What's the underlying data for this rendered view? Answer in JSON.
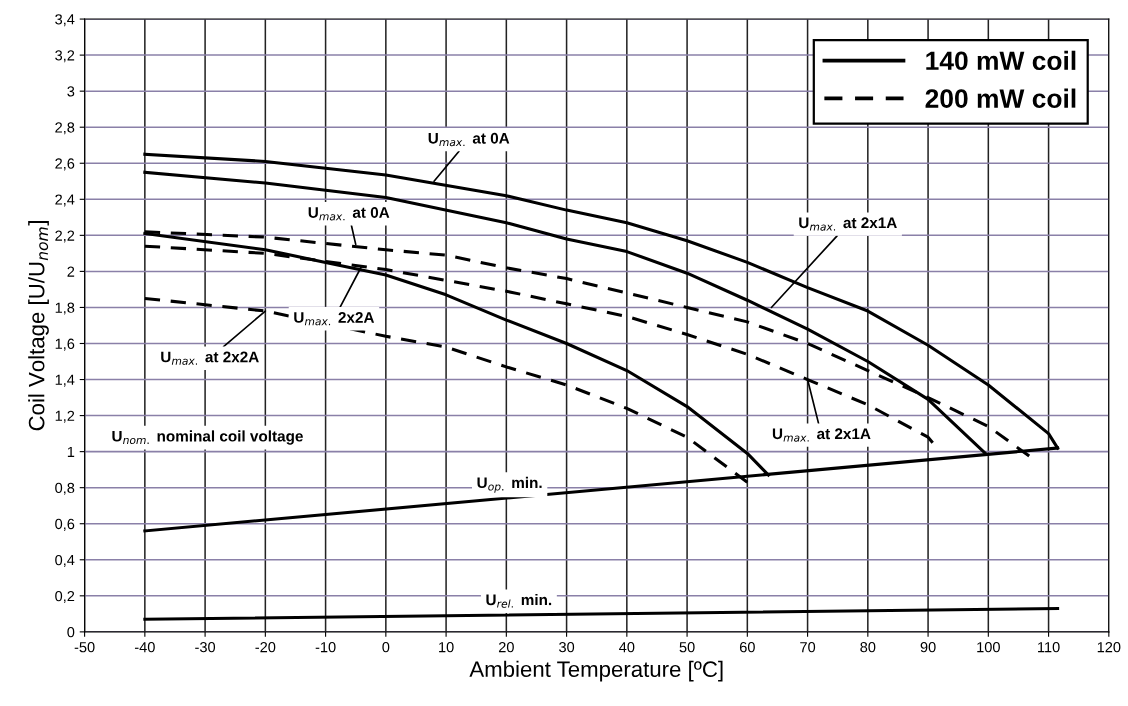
{
  "chart_data": {
    "type": "line",
    "xlabel": "Ambient Temperature [ºC]",
    "ylabel": "Coil Voltage [U/U$_{nom}$]",
    "xlim": [
      -50,
      120
    ],
    "xticks": [
      -50,
      -40,
      -30,
      -20,
      -10,
      0,
      10,
      20,
      30,
      40,
      50,
      60,
      70,
      80,
      90,
      100,
      110,
      120
    ],
    "ylim": [
      0,
      3.4
    ],
    "yticks": [
      0,
      {
        "value": 0.2,
        "label": "0,2"
      },
      {
        "value": 0.4,
        "label": "0,4"
      },
      {
        "value": 0.6,
        "label": "0,6"
      },
      {
        "value": 0.8,
        "label": "0,8"
      },
      1,
      {
        "value": 1.2,
        "label": "1,2"
      },
      {
        "value": 1.4,
        "label": "1,4"
      },
      {
        "value": 1.6,
        "label": "1,6"
      },
      {
        "value": 1.8,
        "label": "1,8"
      },
      2,
      {
        "value": 2.2,
        "label": "2,2"
      },
      {
        "value": 2.4,
        "label": "2,4"
      },
      {
        "value": 2.6,
        "label": "2,6"
      },
      {
        "value": 2.8,
        "label": "2,8"
      },
      3,
      {
        "value": 3.2,
        "label": "3,2"
      },
      {
        "value": 3.4,
        "label": "3,4"
      }
    ],
    "grid": true,
    "legend": "top right",
    "marker": "none",
    "series": [
      {
        "name": "140 mW coil",
        "color": "#000000",
        "line_style": "solid",
        "x": [
          -40,
          -20,
          0,
          20,
          30,
          40,
          50,
          60,
          70,
          80,
          90,
          100,
          110,
          111.5
        ],
        "values": [
          2.65,
          2.61,
          2.535,
          2.42,
          2.34,
          2.27,
          2.17,
          2.05,
          1.91,
          1.78,
          1.59,
          1.37,
          1.1,
          1.02
        ]
      },
      {
        "color": "#000000",
        "line_style": "solid",
        "x": [
          -40,
          -20,
          0,
          20,
          30,
          40,
          50,
          60,
          70,
          80,
          90,
          99.5
        ],
        "values": [
          2.55,
          2.49,
          2.41,
          2.27,
          2.18,
          2.11,
          1.99,
          1.84,
          1.68,
          1.5,
          1.29,
          0.99
        ]
      },
      {
        "color": "#000000",
        "line_style": "solid",
        "x": [
          -40,
          -20,
          -10,
          0,
          10,
          20,
          30,
          40,
          50,
          60,
          63.5
        ],
        "values": [
          2.21,
          2.12,
          2.05,
          1.98,
          1.87,
          1.73,
          1.6,
          1.45,
          1.25,
          0.99,
          0.87
        ]
      },
      {
        "name": "200 mW coil",
        "color": "#000000",
        "line_style": "dashed",
        "x": [
          -40,
          -20,
          0,
          10,
          20,
          30,
          40,
          50,
          60,
          70,
          80,
          90,
          100,
          107
        ],
        "values": [
          2.22,
          2.19,
          2.12,
          2.09,
          2.02,
          1.96,
          1.88,
          1.8,
          1.72,
          1.6,
          1.45,
          1.3,
          1.14,
          0.97
        ]
      },
      {
        "color": "#000000",
        "line_style": "dashed",
        "x": [
          -40,
          -20,
          0,
          20,
          30,
          40,
          50,
          60,
          70,
          80,
          90,
          91
        ],
        "values": [
          2.14,
          2.1,
          2.01,
          1.89,
          1.82,
          1.75,
          1.65,
          1.54,
          1.4,
          1.26,
          1.08,
          1.04
        ]
      },
      {
        "color": "#000000",
        "line_style": "dashed",
        "x": [
          -40,
          -20,
          0,
          10,
          20,
          30,
          40,
          50,
          60
        ],
        "values": [
          1.85,
          1.78,
          1.64,
          1.58,
          1.47,
          1.37,
          1.24,
          1.08,
          0.83
        ]
      },
      {
        "color": "#000000",
        "line_style": "solid",
        "x": [
          -40,
          111.5
        ],
        "values": [
          0.56,
          1.02
        ]
      },
      {
        "color": "#000000",
        "line_style": "solid",
        "x": [
          -40,
          111.5
        ],
        "values": [
          0.07,
          0.13
        ]
      }
    ],
    "annotations": [
      {
        "text": "U$_{max.}$ at 0A",
        "x": 8,
        "y": 2.5
      },
      {
        "text": "U$_{max.}$ at 0A",
        "x": -5,
        "y": 2.15
      },
      {
        "text": "U$_{max.}$ 2x2A",
        "x": -4,
        "y": 2.03
      },
      {
        "text": "U$_{max.}$ at 2x2A",
        "x": -20,
        "y": 1.78
      },
      {
        "text": "U$_{max.}$ at 2x1A",
        "x": 64,
        "y": 1.8
      },
      {
        "text": "U$_{max.}$ at 2x1A",
        "x": 70,
        "y": 1.4
      },
      "U$_{nom.}$ nominal coil voltage",
      "U$_{op.}$ min.",
      "U$_{rel.}$ min."
    ]
  }
}
